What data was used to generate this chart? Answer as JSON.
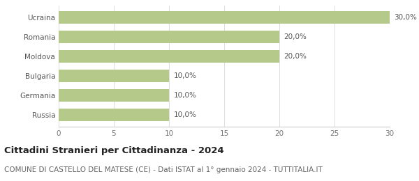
{
  "categories": [
    "Russia",
    "Germania",
    "Bulgaria",
    "Moldova",
    "Romania",
    "Ucraina"
  ],
  "values": [
    10.0,
    10.0,
    10.0,
    20.0,
    20.0,
    30.0
  ],
  "labels": [
    "10,0%",
    "10,0%",
    "10,0%",
    "20,0%",
    "20,0%",
    "30,0%"
  ],
  "bar_color": "#b5c98a",
  "background_color": "#ffffff",
  "xlim": [
    0,
    30
  ],
  "xticks": [
    0,
    5,
    10,
    15,
    20,
    25,
    30
  ],
  "title": "Cittadini Stranieri per Cittadinanza - 2024",
  "subtitle": "COMUNE DI CASTELLO DEL MATESE (CE) - Dati ISTAT al 1° gennaio 2024 - TUTTITALIA.IT",
  "title_fontsize": 9.5,
  "subtitle_fontsize": 7.5,
  "label_fontsize": 7.5,
  "tick_fontsize": 7.5,
  "bar_height": 0.65
}
